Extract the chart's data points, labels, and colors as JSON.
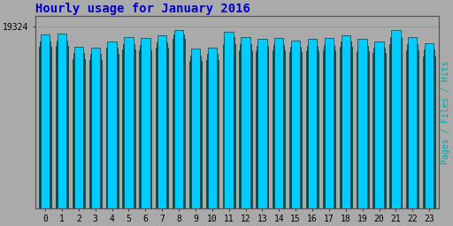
{
  "title": "Hourly usage for January 2016",
  "title_color": "#0000cc",
  "title_fontsize": 10,
  "ylabel_right": "Pages / Files / Hits",
  "ylabel_right_color": "#00aaaa",
  "hours": [
    0,
    1,
    2,
    3,
    4,
    5,
    6,
    7,
    8,
    9,
    10,
    11,
    12,
    13,
    14,
    15,
    16,
    17,
    18,
    19,
    20,
    21,
    22,
    23
  ],
  "hits": [
    18500,
    18600,
    17200,
    17100,
    17800,
    18200,
    18100,
    18400,
    19000,
    17000,
    17100,
    18800,
    18200,
    18000,
    18100,
    17900,
    18000,
    18100,
    18400,
    18000,
    17800,
    19000,
    18200,
    17600
  ],
  "files": [
    17800,
    17900,
    16500,
    16400,
    17100,
    17500,
    17400,
    17700,
    18500,
    16300,
    16400,
    18200,
    17500,
    17300,
    17400,
    17200,
    17300,
    17400,
    17800,
    17300,
    17100,
    18200,
    17500,
    16900
  ],
  "pages": [
    17200,
    17300,
    15900,
    15800,
    16400,
    16900,
    16800,
    17100,
    18000,
    15700,
    15800,
    17500,
    16800,
    16700,
    16800,
    16600,
    16700,
    16800,
    17200,
    16700,
    16500,
    17500,
    16800,
    16200
  ],
  "color_hits": "#00ccff",
  "color_files": "#0033aa",
  "color_pages": "#006600",
  "bg_color": "#aaaaaa",
  "bar_edge_color": "#004444",
  "ylim_min": 0,
  "ylim_max": 20500,
  "ytick_value": 19324,
  "fig_bg": "#aaaaaa"
}
